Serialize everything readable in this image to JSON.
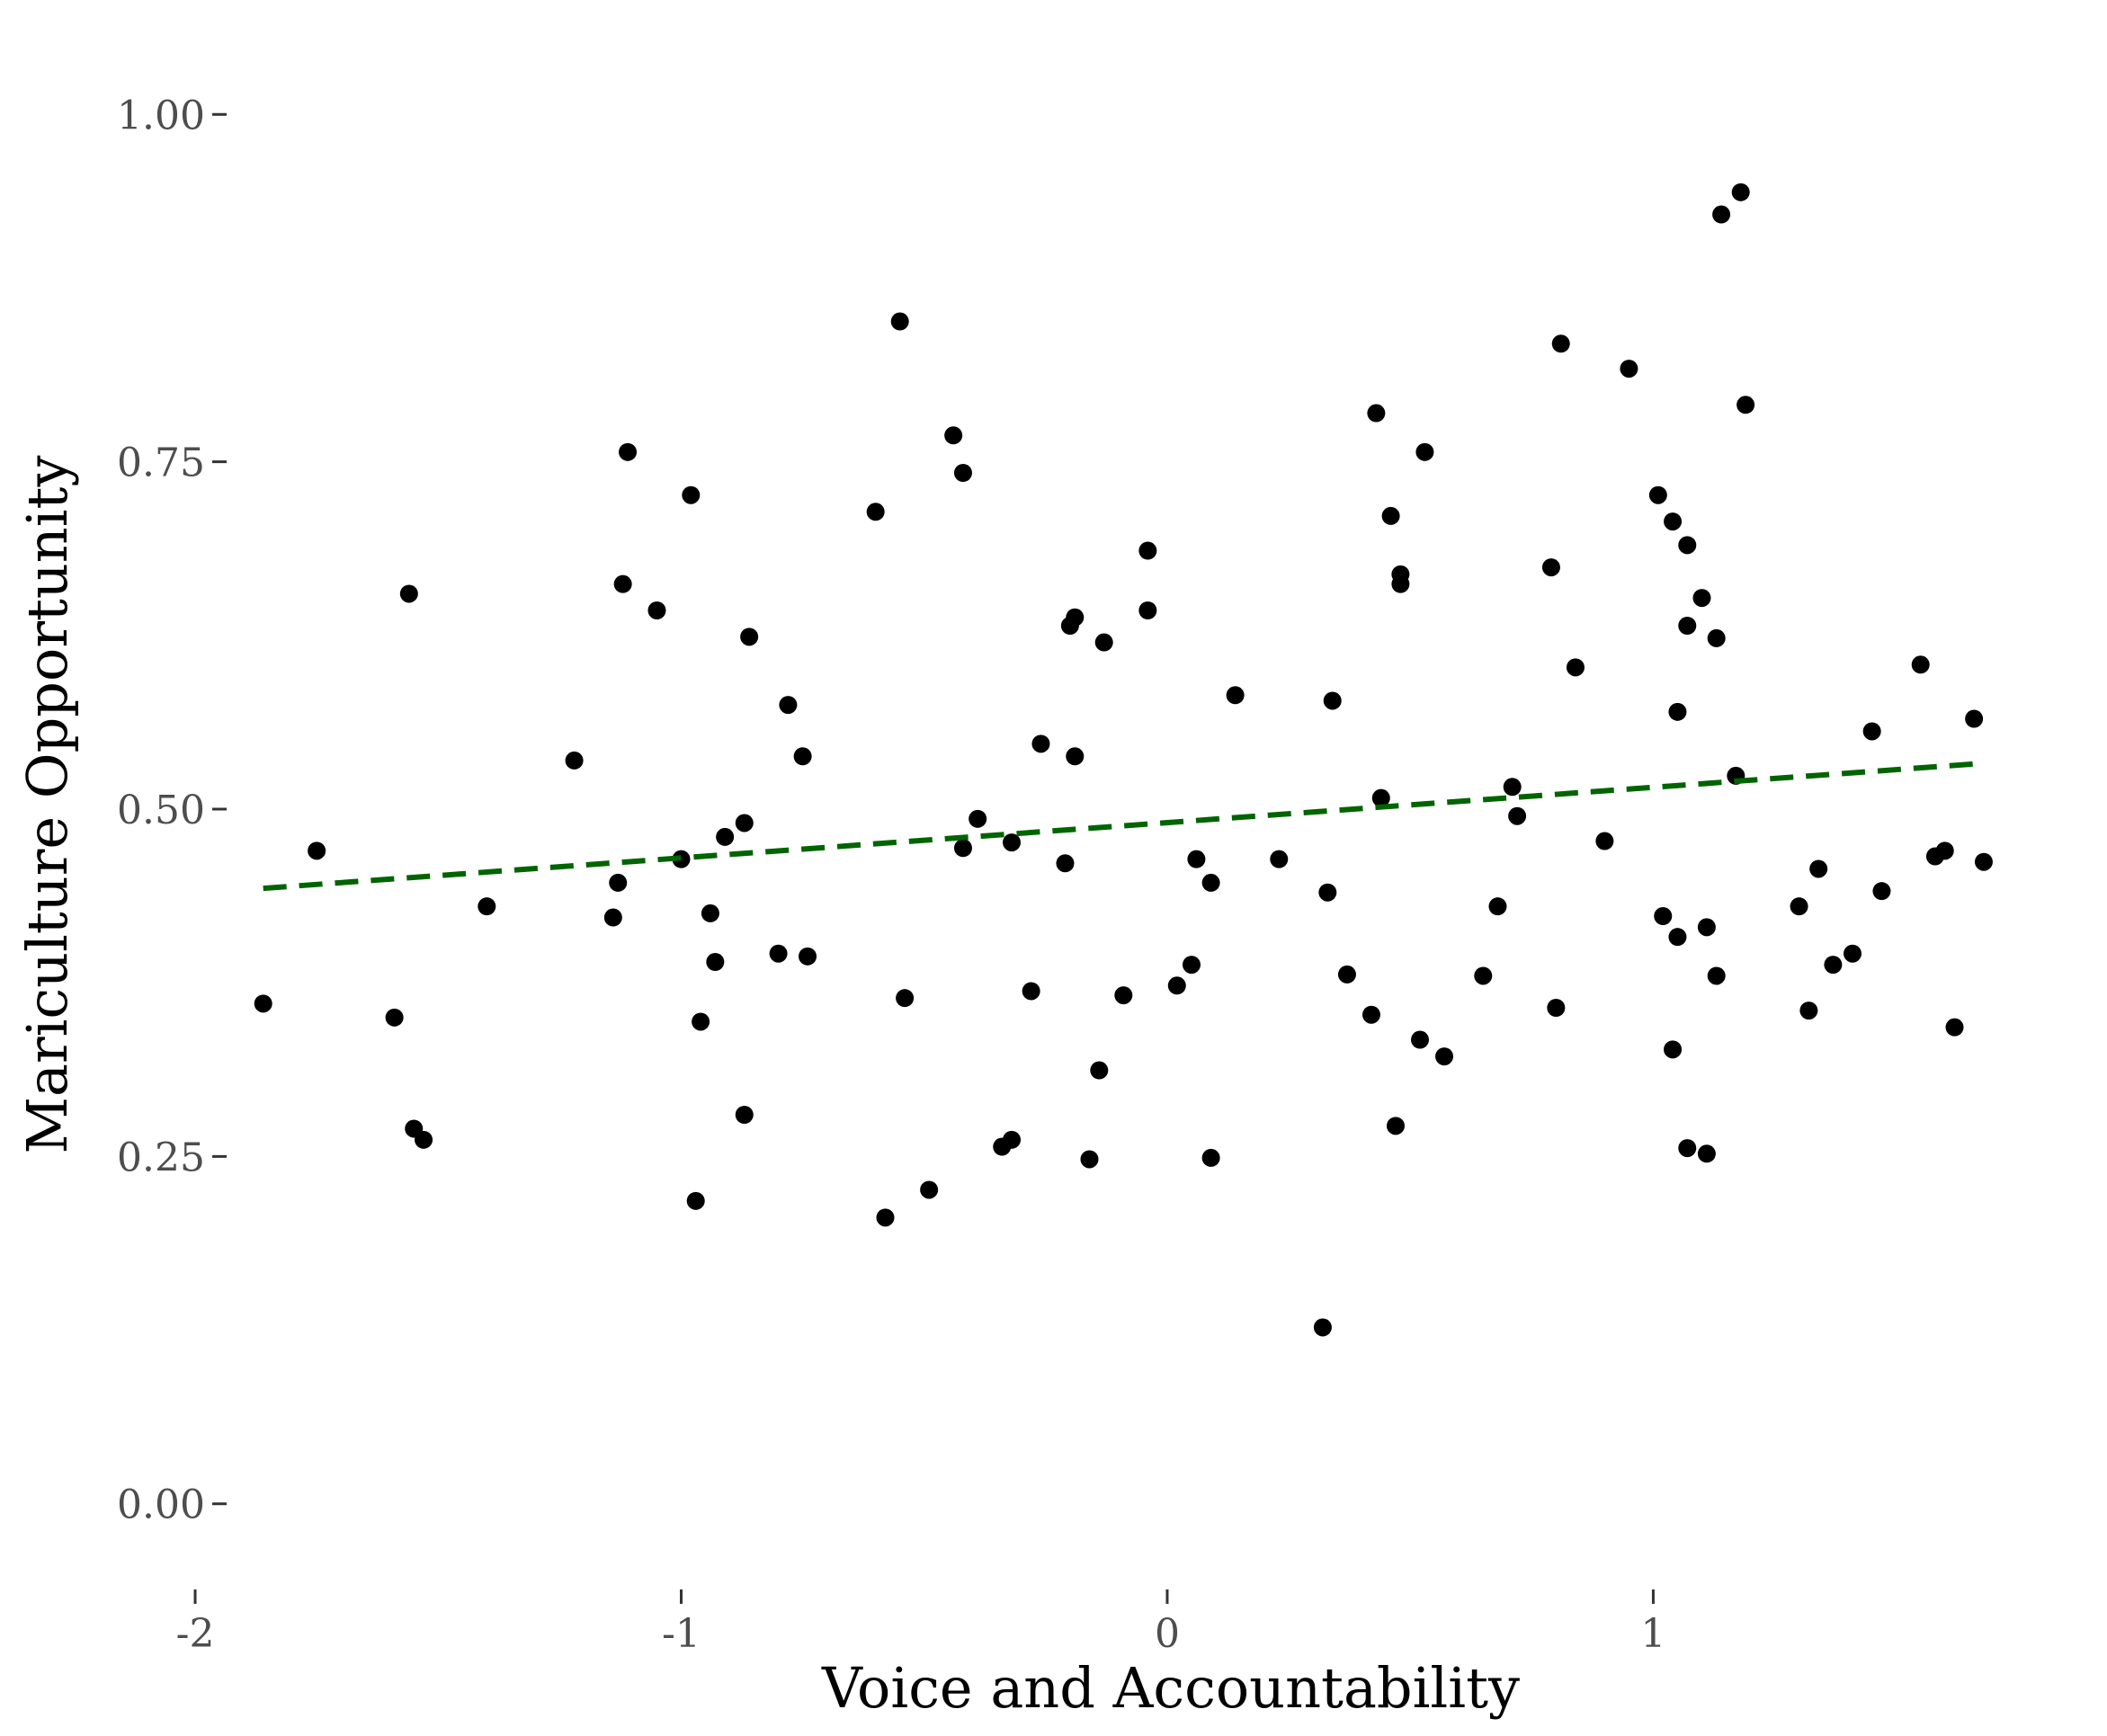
{
  "chart_data": {
    "type": "scatter",
    "title": "",
    "xlabel": "Voice and Accountability",
    "ylabel": "Mariculture Opportunity",
    "xlim": [
      -2.05,
      1.78
    ],
    "ylim": [
      -0.05,
      1.05
    ],
    "x_ticks": [
      {
        "value": -2,
        "label": "-2"
      },
      {
        "value": -1,
        "label": "-1"
      },
      {
        "value": 0,
        "label": "0"
      },
      {
        "value": 1,
        "label": "1"
      }
    ],
    "y_ticks": [
      {
        "value": 0,
        "label": "0.00"
      },
      {
        "value": 0.25,
        "label": "0.25"
      },
      {
        "value": 0.5,
        "label": "0.50"
      },
      {
        "value": 0.75,
        "label": "0.75"
      },
      {
        "value": 1,
        "label": "1.00"
      }
    ],
    "grid": false,
    "point_color": "#000000",
    "trend_line": {
      "style": "dashed",
      "color": "#006400",
      "x": [
        -1.86,
        1.68
      ],
      "y": [
        0.443,
        0.533
      ]
    },
    "points": [
      {
        "x": -1.86,
        "y": 0.36
      },
      {
        "x": -1.75,
        "y": 0.47
      },
      {
        "x": -1.59,
        "y": 0.35
      },
      {
        "x": -1.56,
        "y": 0.655
      },
      {
        "x": -1.55,
        "y": 0.27
      },
      {
        "x": -1.53,
        "y": 0.262
      },
      {
        "x": -1.4,
        "y": 0.43
      },
      {
        "x": -1.22,
        "y": 0.535
      },
      {
        "x": -1.14,
        "y": 0.422
      },
      {
        "x": -1.13,
        "y": 0.447
      },
      {
        "x": -1.12,
        "y": 0.662
      },
      {
        "x": -1.11,
        "y": 0.757
      },
      {
        "x": -1.05,
        "y": 0.643
      },
      {
        "x": -1.0,
        "y": 0.464
      },
      {
        "x": -0.98,
        "y": 0.726
      },
      {
        "x": -0.97,
        "y": 0.218
      },
      {
        "x": -0.96,
        "y": 0.347
      },
      {
        "x": -0.94,
        "y": 0.425
      },
      {
        "x": -0.93,
        "y": 0.39
      },
      {
        "x": -0.91,
        "y": 0.48
      },
      {
        "x": -0.87,
        "y": 0.28
      },
      {
        "x": -0.87,
        "y": 0.49
      },
      {
        "x": -0.86,
        "y": 0.624
      },
      {
        "x": -0.8,
        "y": 0.396
      },
      {
        "x": -0.78,
        "y": 0.575
      },
      {
        "x": -0.75,
        "y": 0.538
      },
      {
        "x": -0.74,
        "y": 0.394
      },
      {
        "x": -0.6,
        "y": 0.714
      },
      {
        "x": -0.58,
        "y": 0.206
      },
      {
        "x": -0.55,
        "y": 0.851
      },
      {
        "x": -0.54,
        "y": 0.364
      },
      {
        "x": -0.49,
        "y": 0.226
      },
      {
        "x": -0.44,
        "y": 0.769
      },
      {
        "x": -0.42,
        "y": 0.742
      },
      {
        "x": -0.42,
        "y": 0.472
      },
      {
        "x": -0.39,
        "y": 0.493
      },
      {
        "x": -0.34,
        "y": 0.257
      },
      {
        "x": -0.32,
        "y": 0.262
      },
      {
        "x": -0.32,
        "y": 0.476
      },
      {
        "x": -0.28,
        "y": 0.369
      },
      {
        "x": -0.26,
        "y": 0.547
      },
      {
        "x": -0.21,
        "y": 0.461
      },
      {
        "x": -0.2,
        "y": 0.632
      },
      {
        "x": -0.19,
        "y": 0.638
      },
      {
        "x": -0.19,
        "y": 0.538
      },
      {
        "x": -0.16,
        "y": 0.248
      },
      {
        "x": -0.14,
        "y": 0.312
      },
      {
        "x": -0.13,
        "y": 0.62
      },
      {
        "x": -0.09,
        "y": 0.366
      },
      {
        "x": -0.04,
        "y": 0.686
      },
      {
        "x": -0.04,
        "y": 0.643
      },
      {
        "x": 0.02,
        "y": 0.373
      },
      {
        "x": 0.05,
        "y": 0.388
      },
      {
        "x": 0.06,
        "y": 0.464
      },
      {
        "x": 0.09,
        "y": 0.447
      },
      {
        "x": 0.09,
        "y": 0.249
      },
      {
        "x": 0.14,
        "y": 0.582
      },
      {
        "x": 0.23,
        "y": 0.464
      },
      {
        "x": 0.32,
        "y": 0.127
      },
      {
        "x": 0.33,
        "y": 0.44
      },
      {
        "x": 0.34,
        "y": 0.578
      },
      {
        "x": 0.37,
        "y": 0.381
      },
      {
        "x": 0.42,
        "y": 0.352
      },
      {
        "x": 0.43,
        "y": 0.785
      },
      {
        "x": 0.44,
        "y": 0.508
      },
      {
        "x": 0.46,
        "y": 0.711
      },
      {
        "x": 0.47,
        "y": 0.272
      },
      {
        "x": 0.48,
        "y": 0.669
      },
      {
        "x": 0.48,
        "y": 0.662
      },
      {
        "x": 0.52,
        "y": 0.334
      },
      {
        "x": 0.53,
        "y": 0.757
      },
      {
        "x": 0.57,
        "y": 0.322
      },
      {
        "x": 0.65,
        "y": 0.38
      },
      {
        "x": 0.68,
        "y": 0.43
      },
      {
        "x": 0.71,
        "y": 0.516
      },
      {
        "x": 0.72,
        "y": 0.495
      },
      {
        "x": 0.79,
        "y": 0.674
      },
      {
        "x": 0.8,
        "y": 0.357
      },
      {
        "x": 0.81,
        "y": 0.835
      },
      {
        "x": 0.84,
        "y": 0.602
      },
      {
        "x": 0.9,
        "y": 0.477
      },
      {
        "x": 0.95,
        "y": 0.817
      },
      {
        "x": 1.01,
        "y": 0.726
      },
      {
        "x": 1.02,
        "y": 0.423
      },
      {
        "x": 1.04,
        "y": 0.327
      },
      {
        "x": 1.04,
        "y": 0.707
      },
      {
        "x": 1.05,
        "y": 0.57
      },
      {
        "x": 1.05,
        "y": 0.408
      },
      {
        "x": 1.07,
        "y": 0.69
      },
      {
        "x": 1.07,
        "y": 0.632
      },
      {
        "x": 1.07,
        "y": 0.256
      },
      {
        "x": 1.1,
        "y": 0.652
      },
      {
        "x": 1.11,
        "y": 0.415
      },
      {
        "x": 1.11,
        "y": 0.252
      },
      {
        "x": 1.13,
        "y": 0.623
      },
      {
        "x": 1.13,
        "y": 0.38
      },
      {
        "x": 1.14,
        "y": 0.928
      },
      {
        "x": 1.17,
        "y": 0.524
      },
      {
        "x": 1.18,
        "y": 0.944
      },
      {
        "x": 1.19,
        "y": 0.791
      },
      {
        "x": 1.3,
        "y": 0.43
      },
      {
        "x": 1.32,
        "y": 0.355
      },
      {
        "x": 1.34,
        "y": 0.457
      },
      {
        "x": 1.37,
        "y": 0.388
      },
      {
        "x": 1.41,
        "y": 0.396
      },
      {
        "x": 1.45,
        "y": 0.556
      },
      {
        "x": 1.47,
        "y": 0.441
      },
      {
        "x": 1.55,
        "y": 0.604
      },
      {
        "x": 1.58,
        "y": 0.466
      },
      {
        "x": 1.6,
        "y": 0.47
      },
      {
        "x": 1.62,
        "y": 0.343
      },
      {
        "x": 1.66,
        "y": 0.565
      },
      {
        "x": 1.68,
        "y": 0.462
      }
    ]
  }
}
